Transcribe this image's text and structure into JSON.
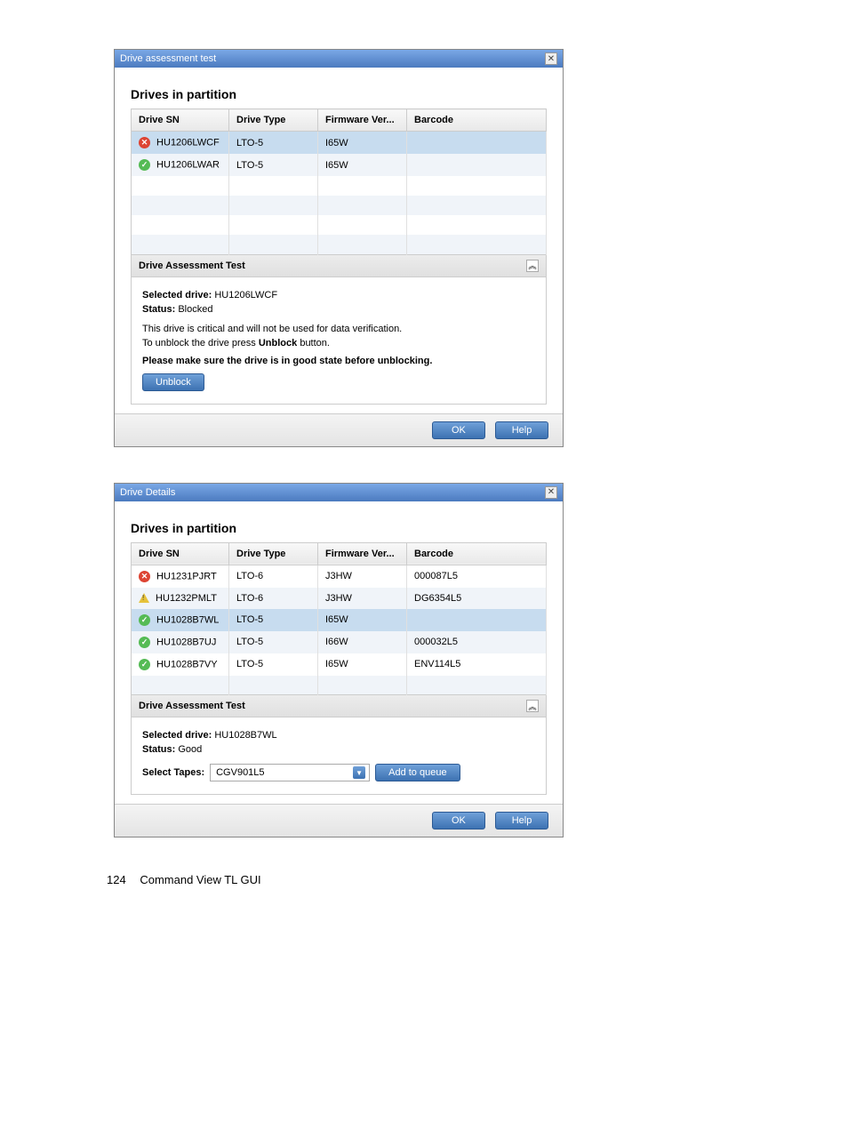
{
  "dialog1": {
    "title": "Drive assessment test",
    "section_title": "Drives in partition",
    "columns": {
      "sn": "Drive SN",
      "type": "Drive Type",
      "fw": "Firmware Ver...",
      "bc": "Barcode"
    },
    "rows": [
      {
        "icon": "bad",
        "sn": "HU1206LWCF",
        "type": "LTO-5",
        "fw": "I65W",
        "bc": "",
        "selected": true
      },
      {
        "icon": "ok",
        "sn": "HU1206LWAR",
        "type": "LTO-5",
        "fw": "I65W",
        "bc": ""
      }
    ],
    "panel_title": "Drive Assessment Test",
    "selected_label": "Selected drive:",
    "selected_value": "HU1206LWCF",
    "status_label": "Status:",
    "status_value": "Blocked",
    "hint1": "This drive is critical and will not be used for data verification.",
    "hint2a": "To unblock the drive press ",
    "hint2b": "Unblock",
    "hint2c": " button.",
    "hint3": "Please make sure the drive is in good state before unblocking.",
    "unblock_label": "Unblock",
    "ok_label": "OK",
    "help_label": "Help"
  },
  "dialog2": {
    "title": "Drive Details",
    "section_title": "Drives in partition",
    "columns": {
      "sn": "Drive SN",
      "type": "Drive Type",
      "fw": "Firmware Ver...",
      "bc": "Barcode"
    },
    "rows": [
      {
        "icon": "bad",
        "sn": "HU1231PJRT",
        "type": "LTO-6",
        "fw": "J3HW",
        "bc": "000087L5"
      },
      {
        "icon": "warn",
        "sn": "HU1232PMLT",
        "type": "LTO-6",
        "fw": "J3HW",
        "bc": "DG6354L5"
      },
      {
        "icon": "ok",
        "sn": "HU1028B7WL",
        "type": "LTO-5",
        "fw": "I65W",
        "bc": "",
        "selected": true
      },
      {
        "icon": "ok",
        "sn": "HU1028B7UJ",
        "type": "LTO-5",
        "fw": "I66W",
        "bc": "000032L5"
      },
      {
        "icon": "ok",
        "sn": "HU1028B7VY",
        "type": "LTO-5",
        "fw": "I65W",
        "bc": "ENV114L5"
      }
    ],
    "panel_title": "Drive Assessment Test",
    "selected_label": "Selected drive:",
    "selected_value": "HU1028B7WL",
    "status_label": "Status:",
    "status_value": "Good",
    "select_tapes_label": "Select Tapes:",
    "select_tapes_value": "CGV901L5",
    "add_queue_label": "Add to queue",
    "ok_label": "OK",
    "help_label": "Help"
  },
  "footer": {
    "page": "124",
    "text": "Command View TL GUI"
  }
}
